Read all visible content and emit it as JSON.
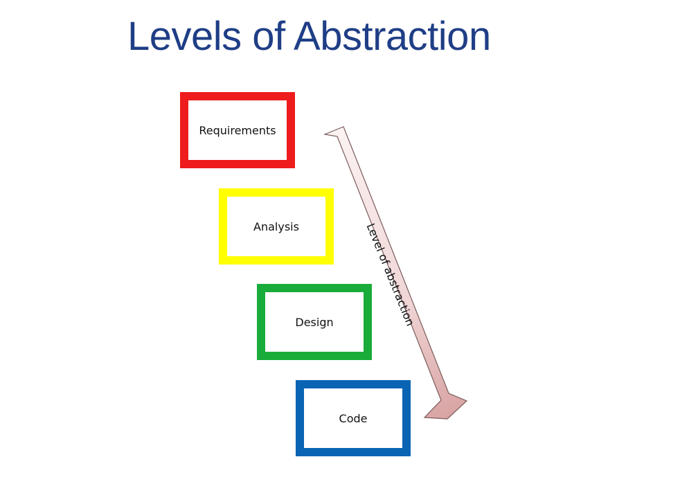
{
  "slide": {
    "title": "Levels of Abstraction"
  },
  "levels": [
    {
      "label": "Requirements",
      "color": "#ee1c1c"
    },
    {
      "label": "Analysis",
      "color": "#ffff00"
    },
    {
      "label": "Design",
      "color": "#1aac3a"
    },
    {
      "label": "Code",
      "color": "#0a64b4"
    }
  ],
  "arrow": {
    "label": "Level of abstraction",
    "gradient_start": "#fbf2f2",
    "gradient_end": "#d9a4a4",
    "stroke": "#7a5a5a"
  }
}
